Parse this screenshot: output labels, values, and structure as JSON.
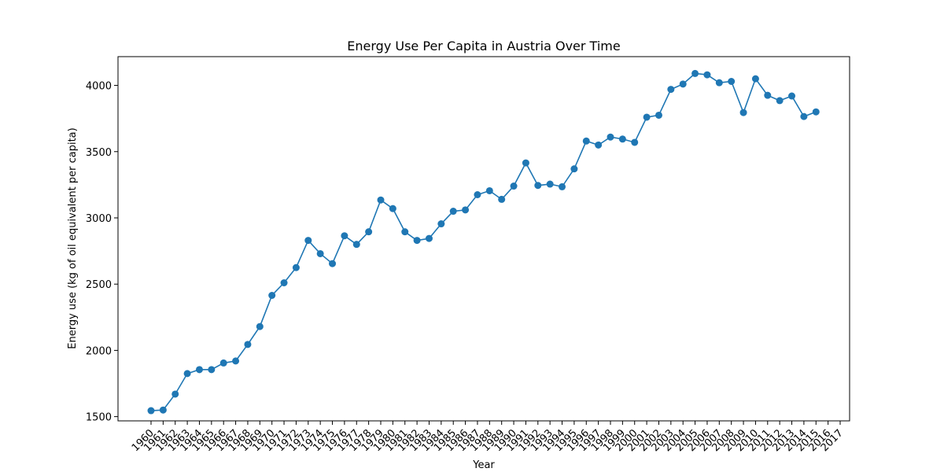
{
  "chart_data": {
    "type": "line",
    "title": "Energy Use Per Capita in Austria Over Time",
    "xlabel": "Year",
    "ylabel": "Energy use (kg of oil equivalent per capita)",
    "x": [
      "1960",
      "1961",
      "1962",
      "1963",
      "1964",
      "1965",
      "1966",
      "1967",
      "1968",
      "1969",
      "1970",
      "1971",
      "1972",
      "1973",
      "1974",
      "1975",
      "1976",
      "1977",
      "1978",
      "1979",
      "1980",
      "1981",
      "1982",
      "1983",
      "1984",
      "1985",
      "1986",
      "1987",
      "1988",
      "1989",
      "1990",
      "1991",
      "1992",
      "1993",
      "1994",
      "1995",
      "1996",
      "1997",
      "1998",
      "1999",
      "2000",
      "2001",
      "2002",
      "2003",
      "2004",
      "2005",
      "2006",
      "2007",
      "2008",
      "2009",
      "2010",
      "2011",
      "2012",
      "2013",
      "2014",
      "2015",
      "2016",
      "2017"
    ],
    "series": [
      {
        "values": [
          1545,
          1550,
          1670,
          1825,
          1855,
          1855,
          1905,
          1920,
          2045,
          2180,
          2415,
          2510,
          2625,
          2830,
          2730,
          2655,
          2865,
          2800,
          2895,
          3135,
          3070,
          2895,
          2830,
          2845,
          2955,
          3050,
          3060,
          3175,
          3205,
          3140,
          3240,
          3415,
          3245,
          3255,
          3235,
          3370,
          3580,
          3550,
          3610,
          3595,
          3570,
          3760,
          3775,
          3970,
          4010,
          4090,
          4080,
          4020,
          4030,
          3795,
          4050,
          3925,
          3885,
          3920,
          3765,
          3800,
          null,
          null
        ],
        "color": "#1f77b4"
      }
    ],
    "yticks": [
      1500,
      2000,
      2500,
      3000,
      3500,
      4000
    ],
    "ylim": [
      1468,
      4217
    ],
    "grid": false,
    "legend": "none"
  }
}
